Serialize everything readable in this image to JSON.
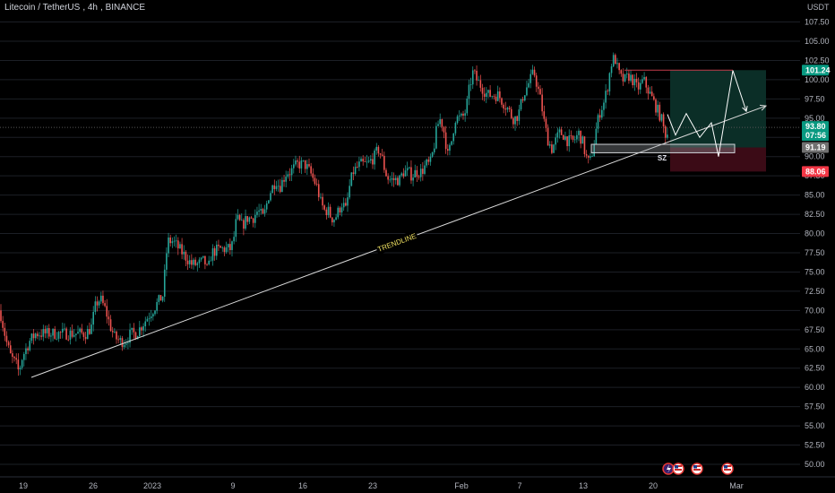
{
  "header": {
    "symbol": "Litecoin / TetherUS",
    "interval": "4h",
    "exchange": "BINANCE",
    "currency_label": "USDT"
  },
  "colors": {
    "up": "#26a69a",
    "down": "#ef5350",
    "background": "#000000",
    "trendline": "#d9d9d9",
    "trendline_label": "#f5e663",
    "target_zone": "#0b2e27",
    "stop_zone": "#3b0b16",
    "support_zone": "#9aa0a6",
    "badge_target": "#089981",
    "badge_stop": "#f23645",
    "badge_current": "#089981",
    "badge_level": "#707070"
  },
  "annotations": {
    "trendline_label": "TRENDLINE",
    "zone_label": "SZ"
  },
  "price_badges": {
    "target": "101.24",
    "current": "93.80",
    "countdown": "07:56",
    "level": "91.19",
    "stop": "88.06"
  },
  "chart_data": {
    "type": "candlestick",
    "y_ticks": [
      "107.50",
      "105.00",
      "102.50",
      "100.00",
      "97.50",
      "95.00",
      "92.50",
      "90.00",
      "87.50",
      "85.00",
      "82.50",
      "80.00",
      "77.50",
      "75.00",
      "72.50",
      "70.00",
      "67.50",
      "65.00",
      "62.50",
      "60.00",
      "57.50",
      "55.00",
      "52.50",
      "50.00"
    ],
    "ylim": [
      48.5,
      110
    ],
    "x_ticks": [
      "19",
      "26",
      "2023",
      "9",
      "16",
      "23",
      "Feb",
      "7",
      "13",
      "20",
      "Mar"
    ],
    "price_path": [
      [
        0,
        70
      ],
      [
        7,
        66
      ],
      [
        12,
        64
      ],
      [
        18,
        63
      ],
      [
        21,
        62
      ],
      [
        25,
        64
      ],
      [
        33,
        66
      ],
      [
        40,
        67
      ],
      [
        48,
        67
      ],
      [
        56,
        67
      ],
      [
        64,
        67
      ],
      [
        72,
        67
      ],
      [
        80,
        67
      ],
      [
        88,
        67
      ],
      [
        96,
        67
      ],
      [
        103,
        68
      ],
      [
        105,
        70
      ],
      [
        108,
        71
      ],
      [
        112,
        71.5
      ],
      [
        118,
        70
      ],
      [
        123,
        68
      ],
      [
        128,
        66.5
      ],
      [
        134,
        66
      ],
      [
        140,
        66
      ],
      [
        146,
        67
      ],
      [
        152,
        67
      ],
      [
        158,
        68
      ],
      [
        164,
        69
      ],
      [
        170,
        70
      ],
      [
        176,
        71
      ],
      [
        182,
        72
      ],
      [
        184,
        75
      ],
      [
        187,
        79
      ],
      [
        193,
        79
      ],
      [
        200,
        78
      ],
      [
        207,
        77
      ],
      [
        214,
        76
      ],
      [
        221,
        76
      ],
      [
        228,
        76.5
      ],
      [
        232,
        75
      ],
      [
        236,
        77.5
      ],
      [
        245,
        78
      ],
      [
        252,
        78
      ],
      [
        258,
        78
      ],
      [
        262,
        80
      ],
      [
        264,
        82
      ],
      [
        270,
        81
      ],
      [
        276,
        82
      ],
      [
        282,
        82
      ],
      [
        288,
        83
      ],
      [
        294,
        82
      ],
      [
        300,
        85
      ],
      [
        304,
        86
      ],
      [
        308,
        87
      ],
      [
        312,
        86
      ],
      [
        316,
        87
      ],
      [
        320,
        88
      ],
      [
        324,
        88
      ],
      [
        332,
        89
      ],
      [
        340,
        89
      ],
      [
        346,
        88
      ],
      [
        350,
        87
      ],
      [
        354,
        86
      ],
      [
        358,
        84
      ],
      [
        362,
        83
      ],
      [
        366,
        83
      ],
      [
        370,
        82
      ],
      [
        374,
        82
      ],
      [
        378,
        83
      ],
      [
        382,
        84
      ],
      [
        386,
        83
      ],
      [
        390,
        86
      ],
      [
        394,
        88
      ],
      [
        398,
        88.5
      ],
      [
        402,
        89
      ],
      [
        410,
        89
      ],
      [
        418,
        90
      ],
      [
        422,
        91
      ],
      [
        426,
        90
      ],
      [
        430,
        88
      ],
      [
        434,
        87
      ],
      [
        438,
        87
      ],
      [
        442,
        87
      ],
      [
        446,
        87
      ],
      [
        450,
        88
      ],
      [
        456,
        88
      ],
      [
        460,
        87.5
      ],
      [
        464,
        88
      ],
      [
        470,
        88
      ],
      [
        476,
        89
      ],
      [
        480,
        89
      ],
      [
        484,
        91
      ],
      [
        488,
        94
      ],
      [
        492,
        95
      ],
      [
        496,
        93
      ],
      [
        500,
        90
      ],
      [
        504,
        92
      ],
      [
        508,
        95
      ],
      [
        512,
        95
      ],
      [
        516,
        95
      ],
      [
        520,
        96
      ],
      [
        524,
        99
      ],
      [
        528,
        101
      ],
      [
        532,
        100
      ],
      [
        538,
        99
      ],
      [
        544,
        98
      ],
      [
        550,
        98
      ],
      [
        556,
        98
      ],
      [
        562,
        97
      ],
      [
        568,
        96
      ],
      [
        572,
        95
      ],
      [
        576,
        95
      ],
      [
        580,
        96
      ],
      [
        584,
        98
      ],
      [
        588,
        99
      ],
      [
        592,
        100
      ],
      [
        596,
        101
      ],
      [
        600,
        99
      ],
      [
        604,
        97
      ],
      [
        608,
        94
      ],
      [
        612,
        92
      ],
      [
        616,
        91
      ],
      [
        620,
        92
      ],
      [
        624,
        93
      ],
      [
        628,
        93
      ],
      [
        634,
        92
      ],
      [
        640,
        92
      ],
      [
        646,
        93
      ],
      [
        650,
        92
      ],
      [
        654,
        90
      ],
      [
        658,
        89
      ],
      [
        662,
        91
      ],
      [
        666,
        94
      ],
      [
        670,
        96
      ],
      [
        674,
        97
      ],
      [
        678,
        99
      ],
      [
        682,
        102
      ],
      [
        686,
        103
      ],
      [
        690,
        101
      ],
      [
        694,
        100
      ],
      [
        698,
        100
      ],
      [
        702,
        100.5
      ],
      [
        706,
        100
      ],
      [
        710,
        99
      ],
      [
        714,
        99
      ],
      [
        718,
        100
      ],
      [
        722,
        99
      ],
      [
        726,
        98
      ],
      [
        730,
        97
      ],
      [
        734,
        96
      ],
      [
        738,
        95
      ],
      [
        742,
        93
      ],
      [
        745,
        93
      ]
    ],
    "trendline": {
      "x": [
        35,
        855
      ],
      "y": [
        61.3,
        96.6
      ]
    },
    "projection_path": {
      "x": [
        745,
        754,
        766,
        781,
        794,
        802,
        818,
        833
      ],
      "y": [
        95.5,
        92.8,
        95.6,
        92.5,
        94.4,
        90.0,
        101.2,
        95.9
      ]
    },
    "long_position": {
      "x_range": [
        748,
        855
      ],
      "entry": 91.19,
      "target": 101.24,
      "stop": 88.06
    },
    "support_zone": {
      "x_range": [
        660,
        820
      ],
      "y_range": [
        90.5,
        91.6
      ]
    },
    "target_line": {
      "x": [
        697,
        818
      ],
      "y": 101.24
    }
  }
}
